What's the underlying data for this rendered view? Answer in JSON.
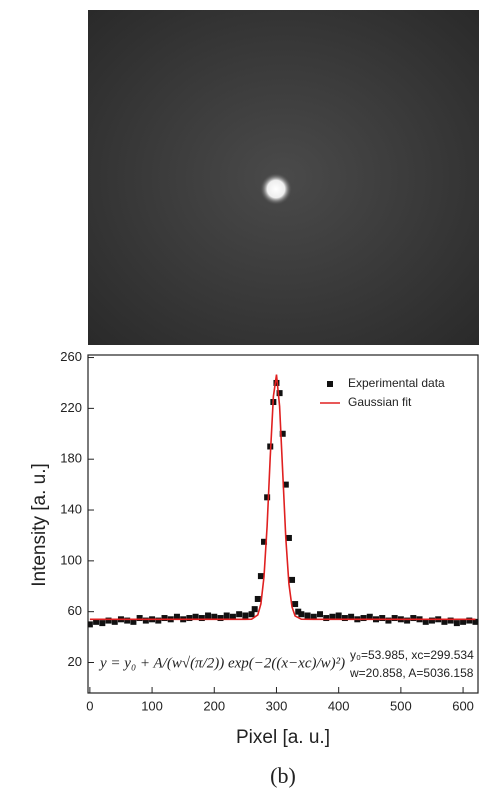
{
  "chart_data": {
    "type": "line",
    "xlabel": "Pixel [a. u.]",
    "ylabel": "Intensity [a. u.]",
    "caption": "(b)",
    "annotations": [
      "y = y₀ + A/(w√(π/2)) exp(−2((x−xc)/w)²)",
      "y₀=53.985,  xc=299.534",
      "w=20.858,  A=5036.158"
    ],
    "xlim": [
      -3,
      624
    ],
    "ylim": [
      -4,
      262
    ],
    "xticks": [
      0,
      100,
      200,
      300,
      400,
      500,
      600
    ],
    "yticks": [
      20,
      60,
      100,
      140,
      180,
      220,
      260
    ],
    "legend": "upper right",
    "series": [
      {
        "name": "Experimental data",
        "color": "#111111",
        "marker": "square",
        "x": [
          0,
          10,
          20,
          30,
          40,
          50,
          60,
          70,
          80,
          90,
          100,
          110,
          120,
          130,
          140,
          150,
          160,
          170,
          180,
          190,
          200,
          210,
          220,
          230,
          240,
          250,
          260,
          265,
          270,
          275,
          280,
          285,
          290,
          295,
          300,
          305,
          310,
          315,
          320,
          325,
          330,
          335,
          340,
          350,
          360,
          370,
          380,
          390,
          400,
          410,
          420,
          430,
          440,
          450,
          460,
          470,
          480,
          490,
          500,
          510,
          520,
          530,
          540,
          550,
          560,
          570,
          580,
          590,
          600,
          610,
          620
        ],
        "values": [
          50,
          52,
          51,
          53,
          52,
          54,
          53,
          52,
          55,
          53,
          54,
          53,
          55,
          54,
          56,
          54,
          55,
          56,
          55,
          57,
          56,
          55,
          57,
          56,
          58,
          57,
          58,
          62,
          70,
          88,
          115,
          150,
          190,
          225,
          240,
          232,
          200,
          160,
          118,
          85,
          66,
          60,
          58,
          57,
          56,
          58,
          55,
          56,
          57,
          55,
          56,
          54,
          55,
          56,
          54,
          55,
          53,
          55,
          54,
          53,
          55,
          54,
          52,
          53,
          54,
          52,
          53,
          51,
          52,
          53,
          52
        ]
      },
      {
        "name": "Gaussian fit",
        "color": "#e02020",
        "marker": "none",
        "x": [
          0,
          40,
          80,
          120,
          160,
          200,
          240,
          250,
          260,
          270,
          275,
          280,
          285,
          290,
          295,
          300,
          305,
          310,
          315,
          320,
          325,
          330,
          340,
          360,
          400,
          440,
          480,
          520,
          560,
          600,
          620
        ],
        "values": [
          54.0,
          54.0,
          54.0,
          54.0,
          54.0,
          54.0,
          54.0,
          54.0,
          54.1,
          57.5,
          66.2,
          87.5,
          127.2,
          181.2,
          229.5,
          246.6,
          221.6,
          170.0,
          117.9,
          81.9,
          63.7,
          56.7,
          54.1,
          54.0,
          54.0,
          54.0,
          54.0,
          54.0,
          54.0,
          54.0,
          54.0
        ]
      }
    ]
  }
}
